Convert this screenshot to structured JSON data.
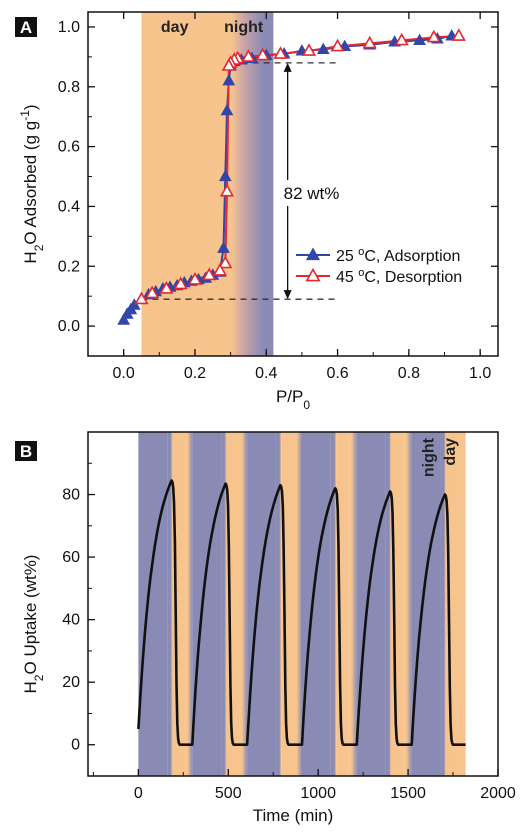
{
  "colors": {
    "day": "#f7c48d",
    "night": "#8a8bb5",
    "adsorption": "#3146a8",
    "desorption": "#e8262e",
    "curve": "#111111",
    "dash": "#333333"
  },
  "chart_data": [
    {
      "panel": "A",
      "type": "line",
      "xlabel_main": "P/P",
      "xlabel_sub": "0",
      "ylabel_a": "H",
      "ylabel_sub": "2",
      "ylabel_b": "O Adsorbed (g g",
      "ylabel_sup": "-1",
      "ylabel_c": ")",
      "xlim": [
        -0.1,
        1.05
      ],
      "ylim": [
        -0.1,
        1.05
      ],
      "xticks": [
        "0.0",
        "0.2",
        "0.4",
        "0.6",
        "0.8",
        "1.0"
      ],
      "xtick_values": [
        0.0,
        0.2,
        0.4,
        0.6,
        0.8,
        1.0
      ],
      "yticks": [
        "0.0",
        "0.2",
        "0.4",
        "0.6",
        "0.8",
        "1.0"
      ],
      "ytick_values": [
        0.0,
        0.2,
        0.4,
        0.6,
        0.8,
        1.0
      ],
      "bands": [
        {
          "label": "day",
          "from": 0.05,
          "to": 0.27,
          "kind": "day"
        },
        {
          "label": "night",
          "from": 0.27,
          "to": 0.42,
          "kind": "night"
        }
      ],
      "annotation": {
        "text": "82 wt%",
        "low": 0.09,
        "high": 0.88
      },
      "legend": [
        "25 °C, Adsorption",
        "45 °C, Desorption"
      ],
      "legend_parts": [
        {
          "pre": "25 ",
          "sup": "o",
          "post": "C, Adsorption"
        },
        {
          "pre": "45 ",
          "sup": "o",
          "post": "C, Desorption"
        }
      ],
      "series": [
        {
          "name": "25 °C, Adsorption",
          "x": [
            0.0,
            0.01,
            0.02,
            0.03,
            0.05,
            0.07,
            0.09,
            0.11,
            0.13,
            0.15,
            0.17,
            0.19,
            0.21,
            0.23,
            0.25,
            0.27,
            0.28,
            0.285,
            0.29,
            0.295,
            0.3,
            0.31,
            0.33,
            0.36,
            0.4,
            0.45,
            0.5,
            0.56,
            0.62,
            0.69,
            0.76,
            0.83,
            0.88,
            0.92
          ],
          "y": [
            0.02,
            0.04,
            0.055,
            0.07,
            0.09,
            0.105,
            0.115,
            0.125,
            0.13,
            0.135,
            0.145,
            0.15,
            0.155,
            0.16,
            0.17,
            0.18,
            0.26,
            0.5,
            0.72,
            0.82,
            0.87,
            0.885,
            0.89,
            0.895,
            0.905,
            0.91,
            0.92,
            0.925,
            0.935,
            0.94,
            0.95,
            0.955,
            0.96,
            0.97
          ]
        },
        {
          "name": "45 °C, Desorption",
          "x": [
            0.94,
            0.87,
            0.78,
            0.69,
            0.6,
            0.52,
            0.44,
            0.39,
            0.35,
            0.32,
            0.31,
            0.3,
            0.295,
            0.29,
            0.285,
            0.27,
            0.24,
            0.2,
            0.16,
            0.12,
            0.08,
            0.05
          ],
          "y": [
            0.97,
            0.965,
            0.955,
            0.945,
            0.935,
            0.92,
            0.91,
            0.905,
            0.9,
            0.895,
            0.89,
            0.88,
            0.87,
            0.45,
            0.21,
            0.185,
            0.17,
            0.155,
            0.14,
            0.125,
            0.11,
            0.09
          ]
        }
      ]
    },
    {
      "panel": "B",
      "type": "line",
      "xlabel": "Time (min)",
      "ylabel_a": "H",
      "ylabel_sub": "2",
      "ylabel_b": "O Uptake (wt%)",
      "xlim": [
        -280,
        2000
      ],
      "ylim": [
        -10,
        100
      ],
      "xticks": [
        "0",
        "500",
        "1000",
        "1500",
        "2000"
      ],
      "xtick_values": [
        0,
        500,
        1000,
        1500,
        2000
      ],
      "yticks": [
        "0",
        "20",
        "40",
        "60",
        "80"
      ],
      "ytick_values": [
        0,
        20,
        40,
        60,
        80
      ],
      "band_labels": [
        {
          "label": "night",
          "x": 1640
        },
        {
          "label": "day",
          "x": 1760
        }
      ],
      "cycles": [
        {
          "start": 0,
          "peak_t": 185,
          "peak": 84.5,
          "drop_end": 230,
          "end": 300
        },
        {
          "start": 300,
          "peak_t": 485,
          "peak": 83.5,
          "drop_end": 530,
          "end": 605
        },
        {
          "start": 605,
          "peak_t": 790,
          "peak": 83.0,
          "drop_end": 835,
          "end": 910
        },
        {
          "start": 910,
          "peak_t": 1095,
          "peak": 82.0,
          "drop_end": 1140,
          "end": 1215
        },
        {
          "start": 1215,
          "peak_t": 1400,
          "peak": 81.0,
          "drop_end": 1445,
          "end": 1520
        },
        {
          "start": 1520,
          "peak_t": 1705,
          "peak": 80.0,
          "drop_end": 1750,
          "end": 1820
        }
      ],
      "start_value": 5,
      "series": [
        {
          "name": "",
          "x": [
            0,
            185,
            230,
            300,
            485,
            530,
            605,
            790,
            835,
            910,
            1095,
            1140,
            1215,
            1400,
            1445,
            1520,
            1705,
            1750,
            1820
          ],
          "y": [
            5,
            84.5,
            0,
            0,
            83.5,
            0,
            0,
            83.0,
            0,
            0,
            82.0,
            0,
            0,
            81.0,
            0,
            0,
            80.0,
            0,
            0
          ]
        }
      ]
    }
  ]
}
